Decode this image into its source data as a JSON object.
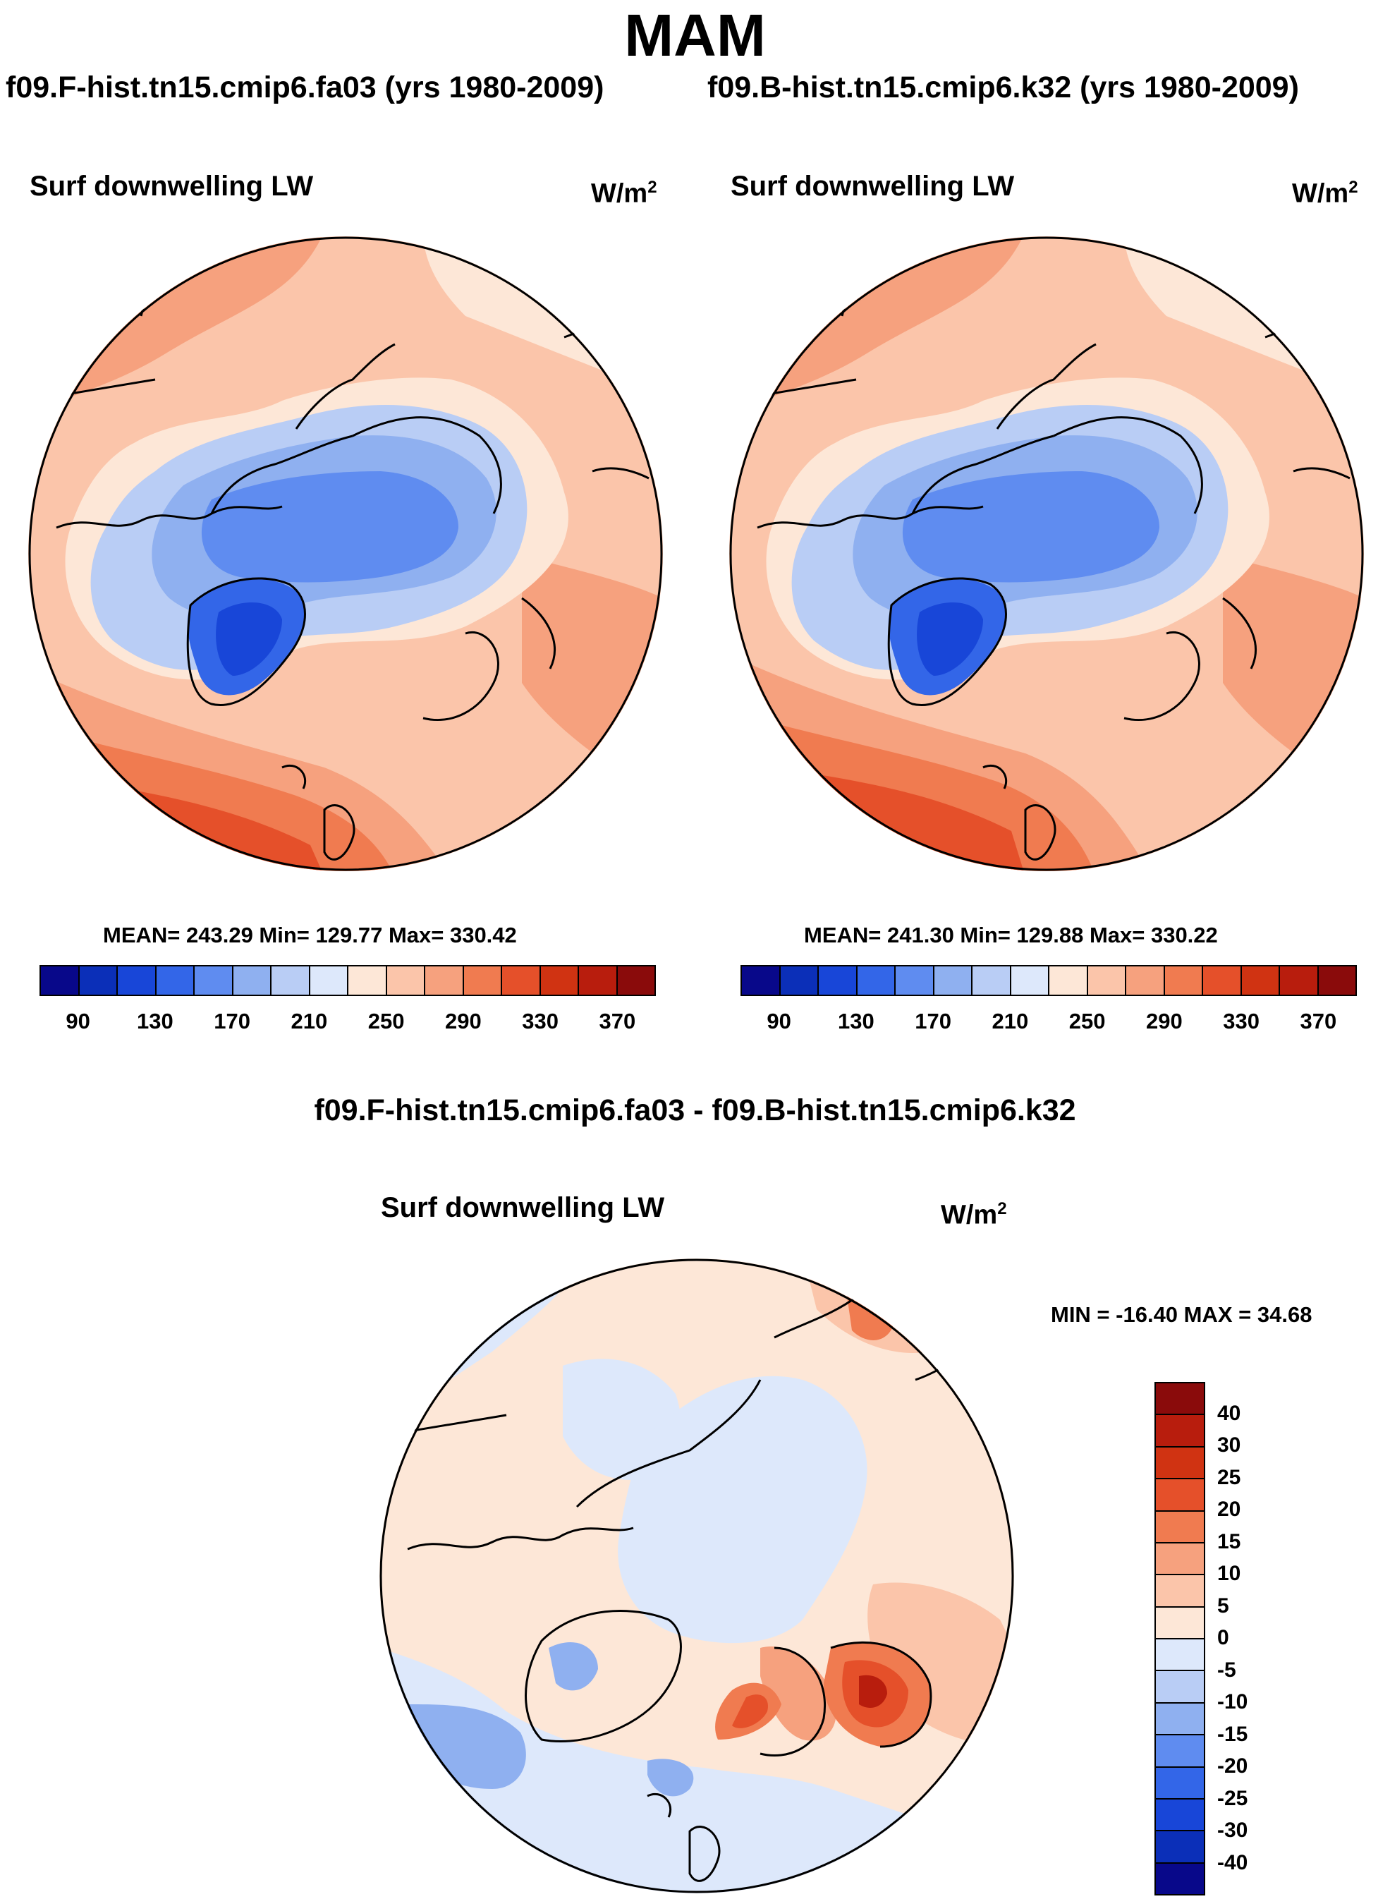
{
  "title": "MAM",
  "case_left": "f09.F-hist.tn15.cmip6.fa03 (yrs 1980-2009)",
  "case_right": "f09.B-hist.tn15.cmip6.k32 (yrs 1980-2009)",
  "diff_title": "f09.F-hist.tn15.cmip6.fa03 - f09.B-hist.tn15.cmip6.k32",
  "panels": {
    "left": {
      "variable": "Surf downwelling LW",
      "units": "W/m",
      "units_sup": "2",
      "stats": "MEAN= 243.29  Min= 129.77  Max= 330.42"
    },
    "right": {
      "variable": "Surf downwelling LW",
      "units": "W/m",
      "units_sup": "2",
      "stats": "MEAN= 241.30  Min= 129.88  Max= 330.22"
    },
    "diff": {
      "variable": "Surf downwelling LW",
      "units": "W/m",
      "units_sup": "2",
      "stats": "MIN = -16.40 MAX =  34.68"
    }
  },
  "abs_colorbar": {
    "colors": [
      "#08088a",
      "#0b2fb8",
      "#1846d8",
      "#3366e8",
      "#5f8cf0",
      "#8fb0f0",
      "#b9cdf5",
      "#dde8fb",
      "#fde7d7",
      "#fbc5aa",
      "#f6a17e",
      "#f07b50",
      "#e5502a",
      "#d03312",
      "#b81d0d",
      "#8a0b0b"
    ],
    "labels": [
      "90",
      "130",
      "170",
      "210",
      "250",
      "290",
      "330",
      "370"
    ]
  },
  "diff_colorbar": {
    "colors": [
      "#8a0b0b",
      "#b81d0d",
      "#d03312",
      "#e5502a",
      "#f07b50",
      "#f6a17e",
      "#fbc5aa",
      "#fde7d7",
      "#dde8fb",
      "#b9cdf5",
      "#8fb0f0",
      "#5f8cf0",
      "#3366e8",
      "#1846d8",
      "#0b2fb8",
      "#08088a"
    ],
    "labels": [
      "40",
      "30",
      "25",
      "20",
      "15",
      "10",
      "5",
      "0",
      "-5",
      "-10",
      "-15",
      "-20",
      "-25",
      "-30",
      "-40"
    ]
  }
}
